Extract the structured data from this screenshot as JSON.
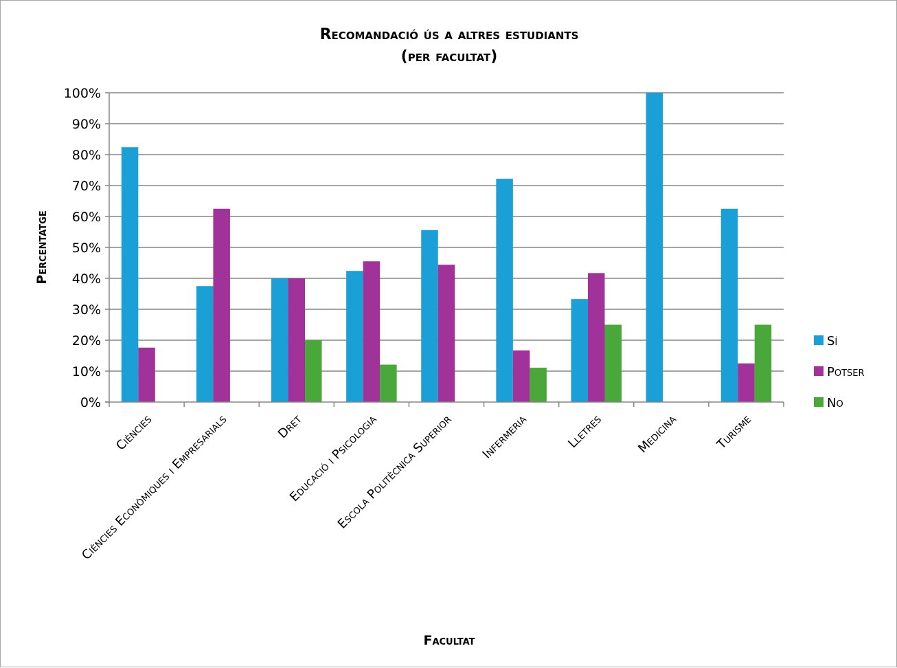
{
  "chart_data": {
    "type": "bar",
    "title_line1": "Recomandació ús a altres estudiants",
    "title_line2": "(per facultat)",
    "xlabel": "Facultat",
    "ylabel": "Percentatge",
    "ylim": [
      0,
      100
    ],
    "yticks": [
      "0%",
      "10%",
      "20%",
      "30%",
      "40%",
      "50%",
      "60%",
      "70%",
      "80%",
      "90%",
      "100%"
    ],
    "grid": true,
    "legend_position": "right",
    "categories": [
      "Ciències",
      "Ciències Econòmiques i Empresarials",
      "Dret",
      "Educació i Psicologia",
      "Escola Politècnica Superior",
      "Infermeria",
      "Lletres",
      "Medicina",
      "Turisme"
    ],
    "series": [
      {
        "name": "Sí",
        "color": "#1a9fd6",
        "values": [
          82.4,
          37.5,
          40,
          42.4,
          55.6,
          72.2,
          33.3,
          100,
          62.5
        ]
      },
      {
        "name": "Potser",
        "color": "#a0329a",
        "values": [
          17.6,
          62.5,
          40,
          45.5,
          44.4,
          16.7,
          41.7,
          0,
          12.5
        ]
      },
      {
        "name": "No",
        "color": "#4aa83a",
        "values": [
          0,
          0,
          20,
          12.1,
          0,
          11.1,
          25,
          0,
          25
        ]
      }
    ]
  }
}
